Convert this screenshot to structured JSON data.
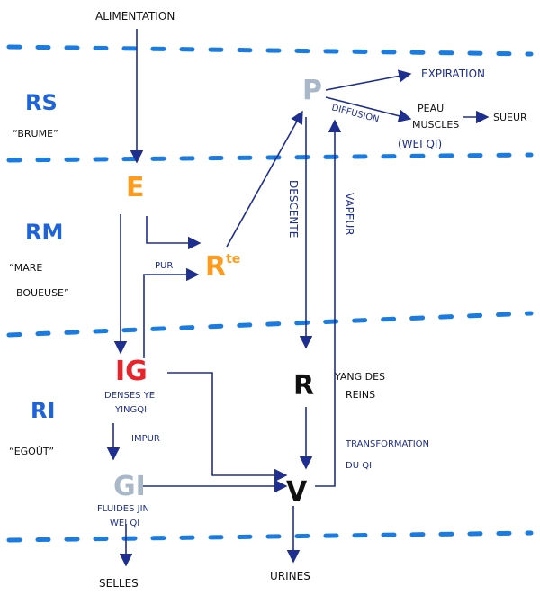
{
  "colors": {
    "dash": "#1a7be0",
    "zone": "#1e63d8",
    "arrow": "#1f2f8f",
    "E": "#ff9a1a",
    "R_te": "#ff9a1a",
    "IG": "#e8232a",
    "P": "#a9b8c9",
    "GI": "#a9b8c9",
    "R": "#111111",
    "V": "#111111"
  },
  "top_label": "ALIMENTATION",
  "zones": {
    "rs": {
      "abbr": "RS",
      "name": "“BRUME”"
    },
    "rm": {
      "abbr": "RM",
      "name_line1": "“MARE",
      "name_line2": "BOUEUSE”"
    },
    "ri": {
      "abbr": "RI",
      "name": "“EGOÛT”"
    }
  },
  "nodes": {
    "E": "E",
    "R_te_base": "R",
    "R_te_sup": "te",
    "P": "P",
    "IG": "IG",
    "GI": "GI",
    "R": "R",
    "V": "V"
  },
  "labels": {
    "expiration": "EXPIRATION",
    "diffusion": "DIFFUSION",
    "peau": "PEAU",
    "muscles": "MUSCLES",
    "wei_qi": "(WEI QI)",
    "sueur": "SUEUR",
    "pur": "PUR",
    "descente": "DESCENTE",
    "vapeur": "VAPEUR",
    "yang_line1": "YANG DES",
    "yang_line2": "REINS",
    "ig_sub_line1": "DENSES YE",
    "ig_sub_line2": "YINGQI",
    "impur": "IMPUR",
    "transf_line1": "TRANSFORMATION",
    "transf_line2": "DU QI",
    "gi_sub_line1": "FLUIDES JIN",
    "gi_sub_line2": "WEI QI",
    "selles": "SELLES",
    "urines": "URINES"
  }
}
